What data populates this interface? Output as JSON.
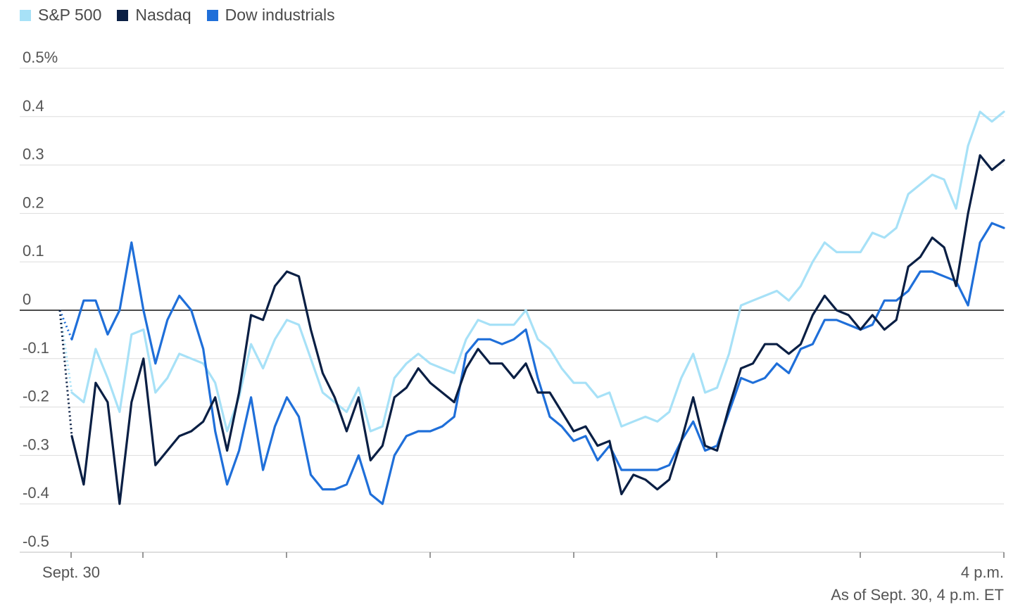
{
  "chart_data": {
    "type": "line",
    "ylim": [
      -0.5,
      0.5
    ],
    "y_ticks": [
      {
        "value": 0.5,
        "label": "0.5%"
      },
      {
        "value": 0.4,
        "label": "0.4"
      },
      {
        "value": 0.3,
        "label": "0.3"
      },
      {
        "value": 0.2,
        "label": "0.2"
      },
      {
        "value": 0.1,
        "label": "0.1"
      },
      {
        "value": 0,
        "label": "0"
      },
      {
        "value": -0.1,
        "label": "-0.1"
      },
      {
        "value": -0.2,
        "label": "-0.2"
      },
      {
        "value": -0.3,
        "label": "-0.3"
      },
      {
        "value": -0.4,
        "label": "-0.4"
      },
      {
        "value": -0.5,
        "label": "-0.5"
      }
    ],
    "x_tick_labels": {
      "start": "Sept. 30",
      "end": "4 p.m."
    },
    "note": "As of Sept. 30, 4 p.m. ET",
    "grid": true,
    "legend": "top-left",
    "series": [
      {
        "name": "S&P 500",
        "color": "#a7e1f7",
        "values": [
          0,
          -0.17,
          -0.19,
          -0.08,
          -0.14,
          -0.21,
          -0.05,
          -0.04,
          -0.17,
          -0.14,
          -0.09,
          -0.1,
          -0.11,
          -0.15,
          -0.25,
          -0.18,
          -0.07,
          -0.12,
          -0.06,
          -0.02,
          -0.03,
          -0.1,
          -0.17,
          -0.19,
          -0.21,
          -0.16,
          -0.25,
          -0.24,
          -0.14,
          -0.11,
          -0.09,
          -0.11,
          -0.12,
          -0.13,
          -0.06,
          -0.02,
          -0.03,
          -0.03,
          -0.03,
          0,
          -0.06,
          -0.08,
          -0.12,
          -0.15,
          -0.15,
          -0.18,
          -0.17,
          -0.24,
          -0.23,
          -0.22,
          -0.23,
          -0.21,
          -0.14,
          -0.09,
          -0.17,
          -0.16,
          -0.09,
          0.01,
          0.02,
          0.03,
          0.04,
          0.02,
          0.05,
          0.1,
          0.14,
          0.12,
          0.12,
          0.12,
          0.16,
          0.15,
          0.17,
          0.24,
          0.26,
          0.28,
          0.27,
          0.21,
          0.34,
          0.41,
          0.39,
          0.41
        ]
      },
      {
        "name": "Nasdaq",
        "color": "#0a1f44",
        "values": [
          0,
          -0.26,
          -0.36,
          -0.15,
          -0.19,
          -0.4,
          -0.19,
          -0.1,
          -0.32,
          -0.29,
          -0.26,
          -0.25,
          -0.23,
          -0.18,
          -0.29,
          -0.17,
          -0.01,
          -0.02,
          0.05,
          0.08,
          0.07,
          -0.04,
          -0.13,
          -0.18,
          -0.25,
          -0.18,
          -0.31,
          -0.28,
          -0.18,
          -0.16,
          -0.12,
          -0.15,
          -0.17,
          -0.19,
          -0.12,
          -0.08,
          -0.11,
          -0.11,
          -0.14,
          -0.11,
          -0.17,
          -0.17,
          -0.21,
          -0.25,
          -0.24,
          -0.28,
          -0.27,
          -0.38,
          -0.34,
          -0.35,
          -0.37,
          -0.35,
          -0.27,
          -0.18,
          -0.28,
          -0.29,
          -0.2,
          -0.12,
          -0.11,
          -0.07,
          -0.07,
          -0.09,
          -0.07,
          -0.01,
          0.03,
          0,
          -0.01,
          -0.04,
          -0.01,
          -0.04,
          -0.02,
          0.09,
          0.11,
          0.15,
          0.13,
          0.05,
          0.2,
          0.32,
          0.29,
          0.31
        ]
      },
      {
        "name": "Dow industrials",
        "color": "#1f6fd9",
        "values": [
          0,
          -0.06,
          0.02,
          0.02,
          -0.05,
          0,
          0.14,
          0,
          -0.11,
          -0.02,
          0.03,
          0,
          -0.08,
          -0.25,
          -0.36,
          -0.29,
          -0.18,
          -0.33,
          -0.24,
          -0.18,
          -0.22,
          -0.34,
          -0.37,
          -0.37,
          -0.36,
          -0.3,
          -0.38,
          -0.4,
          -0.3,
          -0.26,
          -0.25,
          -0.25,
          -0.24,
          -0.22,
          -0.09,
          -0.06,
          -0.06,
          -0.07,
          -0.06,
          -0.04,
          -0.14,
          -0.22,
          -0.24,
          -0.27,
          -0.26,
          -0.31,
          -0.28,
          -0.33,
          -0.33,
          -0.33,
          -0.33,
          -0.32,
          -0.27,
          -0.23,
          -0.29,
          -0.28,
          -0.21,
          -0.14,
          -0.15,
          -0.14,
          -0.11,
          -0.13,
          -0.08,
          -0.07,
          -0.02,
          -0.02,
          -0.03,
          -0.04,
          -0.03,
          0.02,
          0.02,
          0.04,
          0.08,
          0.08,
          0.07,
          0.06,
          0.01,
          0.14,
          0.18,
          0.17
        ]
      }
    ]
  }
}
